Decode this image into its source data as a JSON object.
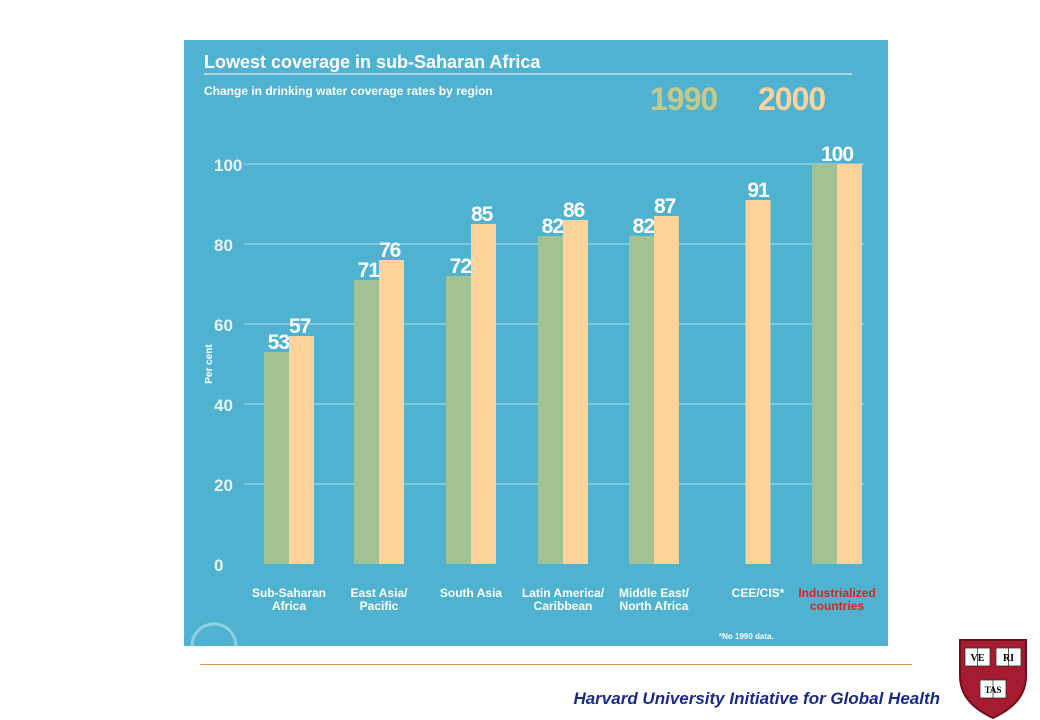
{
  "chart_data": {
    "type": "bar",
    "title": "Lowest coverage in sub-Saharan Africa",
    "subtitle": "Change in drinking water coverage rates by region",
    "ylabel": "Per cent",
    "ylim": [
      0,
      100
    ],
    "yticks": [
      0,
      20,
      40,
      60,
      80,
      100
    ],
    "legend": {
      "position": "top-right"
    },
    "categories": [
      [
        "Sub-Saharan",
        "Africa"
      ],
      [
        "East Asia/",
        "Pacific"
      ],
      [
        "South Asia"
      ],
      [
        "Latin America/",
        "Caribbean"
      ],
      [
        "Middle East/",
        "North Africa"
      ],
      [
        "CEE/CIS*"
      ],
      [
        "Industrialized",
        "countries"
      ]
    ],
    "highlight_category_index": 6,
    "series": [
      {
        "name": "1990",
        "color": "#a3c293",
        "values": [
          53,
          71,
          72,
          82,
          82,
          null,
          100
        ]
      },
      {
        "name": "2000",
        "color": "#fbd39b",
        "values": [
          57,
          76,
          85,
          86,
          87,
          91,
          100
        ]
      }
    ],
    "combined_label_index": 6,
    "combined_label": "100",
    "footnote": "*No 1990 data.",
    "colors": {
      "panel": "#4fb2d0",
      "gridline": "#8fd0e4",
      "text": "#ffffff",
      "axis_text": "#e8f5fa",
      "legend_1990": "#c6c98a",
      "legend_2000": "#fbd39b",
      "highlight": "#d9261c"
    }
  },
  "footer": {
    "text": "Harvard University Initiative for Global Health",
    "color": "#1a2a8a",
    "rule_color": "#d99a4e"
  },
  "logo": {
    "name": "harvard-shield",
    "motto_letters": [
      "VE",
      "RI",
      "TAS"
    ],
    "color": "#a51c30"
  }
}
